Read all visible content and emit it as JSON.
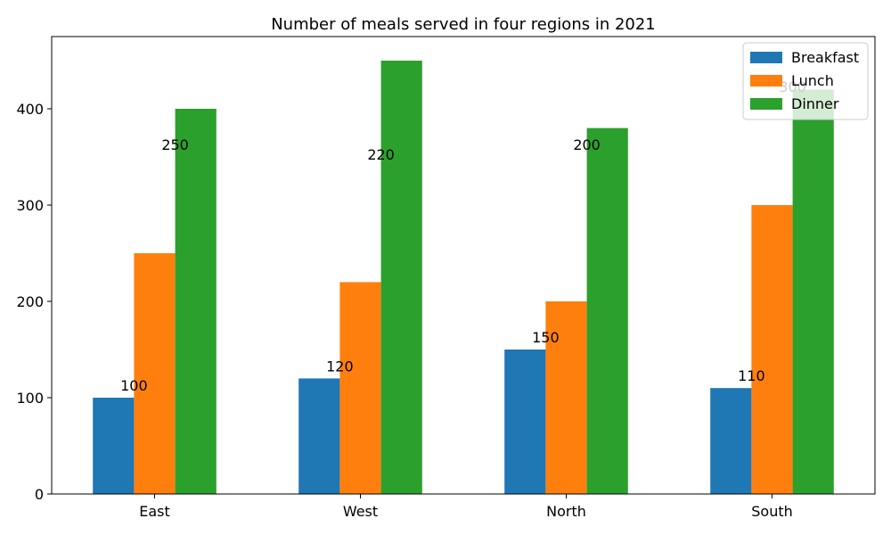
{
  "chart_data": {
    "type": "bar",
    "title": "Number of meals served in four regions in 2021",
    "xlabel": "",
    "ylabel": "",
    "categories": [
      "East",
      "West",
      "North",
      "South"
    ],
    "series": [
      {
        "name": "Breakfast",
        "values": [
          100,
          120,
          150,
          110
        ],
        "color": "#1f77b4"
      },
      {
        "name": "Lunch",
        "values": [
          250,
          220,
          200,
          300
        ],
        "color": "#ff7f0e"
      },
      {
        "name": "Dinner",
        "values": [
          400,
          450,
          380,
          420
        ],
        "color": "#2ca02c"
      }
    ],
    "ylim": [
      0,
      475
    ],
    "yticks": [
      0,
      100,
      200,
      300,
      400
    ],
    "legend_position": "top-right",
    "grid": false,
    "data_labels": [
      {
        "text": "100",
        "series": "Breakfast",
        "category": "East",
        "at_value": 112
      },
      {
        "text": "250",
        "series": "Lunch",
        "category": "East",
        "at_value": 362
      },
      {
        "text": "120",
        "series": "Breakfast",
        "category": "West",
        "at_value": 132
      },
      {
        "text": "220",
        "series": "Lunch",
        "category": "West",
        "at_value": 352
      },
      {
        "text": "150",
        "series": "Breakfast",
        "category": "North",
        "at_value": 162
      },
      {
        "text": "200",
        "series": "Lunch",
        "category": "North",
        "at_value": 362
      },
      {
        "text": "110",
        "series": "Breakfast",
        "category": "South",
        "at_value": 122
      },
      {
        "text": "300",
        "series": "Lunch",
        "category": "South",
        "at_value": 422
      }
    ]
  }
}
